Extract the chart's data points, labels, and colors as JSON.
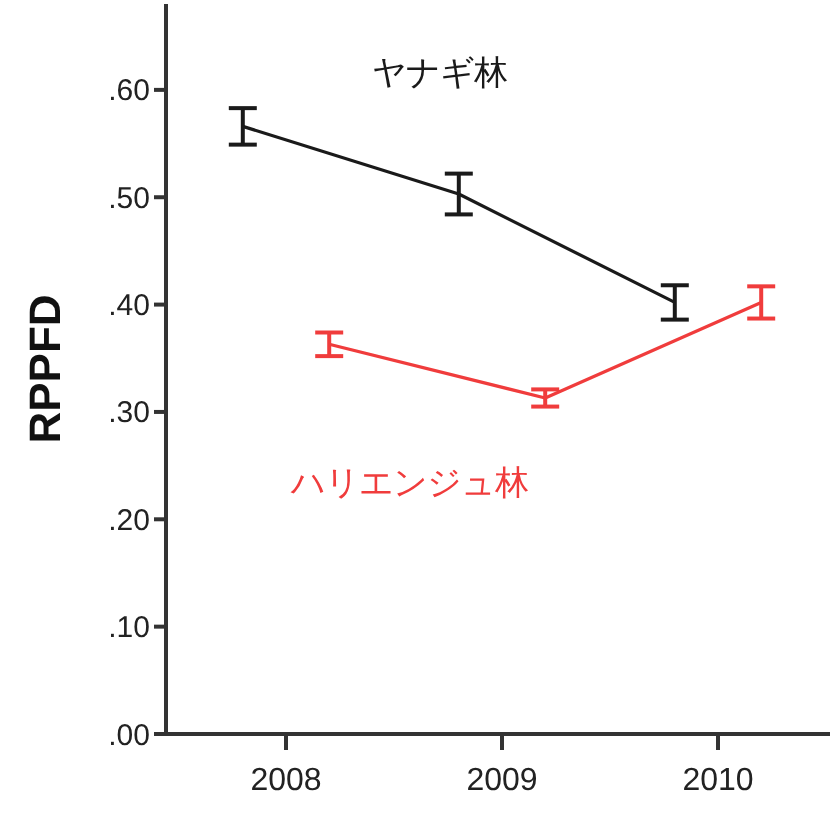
{
  "chart_data": {
    "type": "line",
    "ylabel": "RPPFD",
    "categories": [
      "2008",
      "2009",
      "2010"
    ],
    "ylim": [
      0,
      0.68
    ],
    "yticks": [
      {
        "value": 0,
        "label": ".00"
      },
      {
        "value": 0.1,
        "label": ".10"
      },
      {
        "value": 0.2,
        "label": ".20"
      },
      {
        "value": 0.3,
        "label": ".30"
      },
      {
        "value": 0.4,
        "label": ".40"
      },
      {
        "value": 0.5,
        "label": ".50"
      },
      {
        "value": 0.6,
        "label": ".60"
      }
    ],
    "marker": "none",
    "grid": false,
    "series": [
      {
        "name": "ヤナギ林",
        "color": "#1a1a1a",
        "values": [
          0.566,
          0.503,
          0.402
        ],
        "errors": [
          0.017,
          0.019,
          0.016
        ]
      },
      {
        "name": "ハリエンジュ林",
        "color": "#f03c3c",
        "values": [
          0.363,
          0.313,
          0.402
        ],
        "errors": [
          0.011,
          0.008,
          0.015
        ]
      }
    ]
  }
}
